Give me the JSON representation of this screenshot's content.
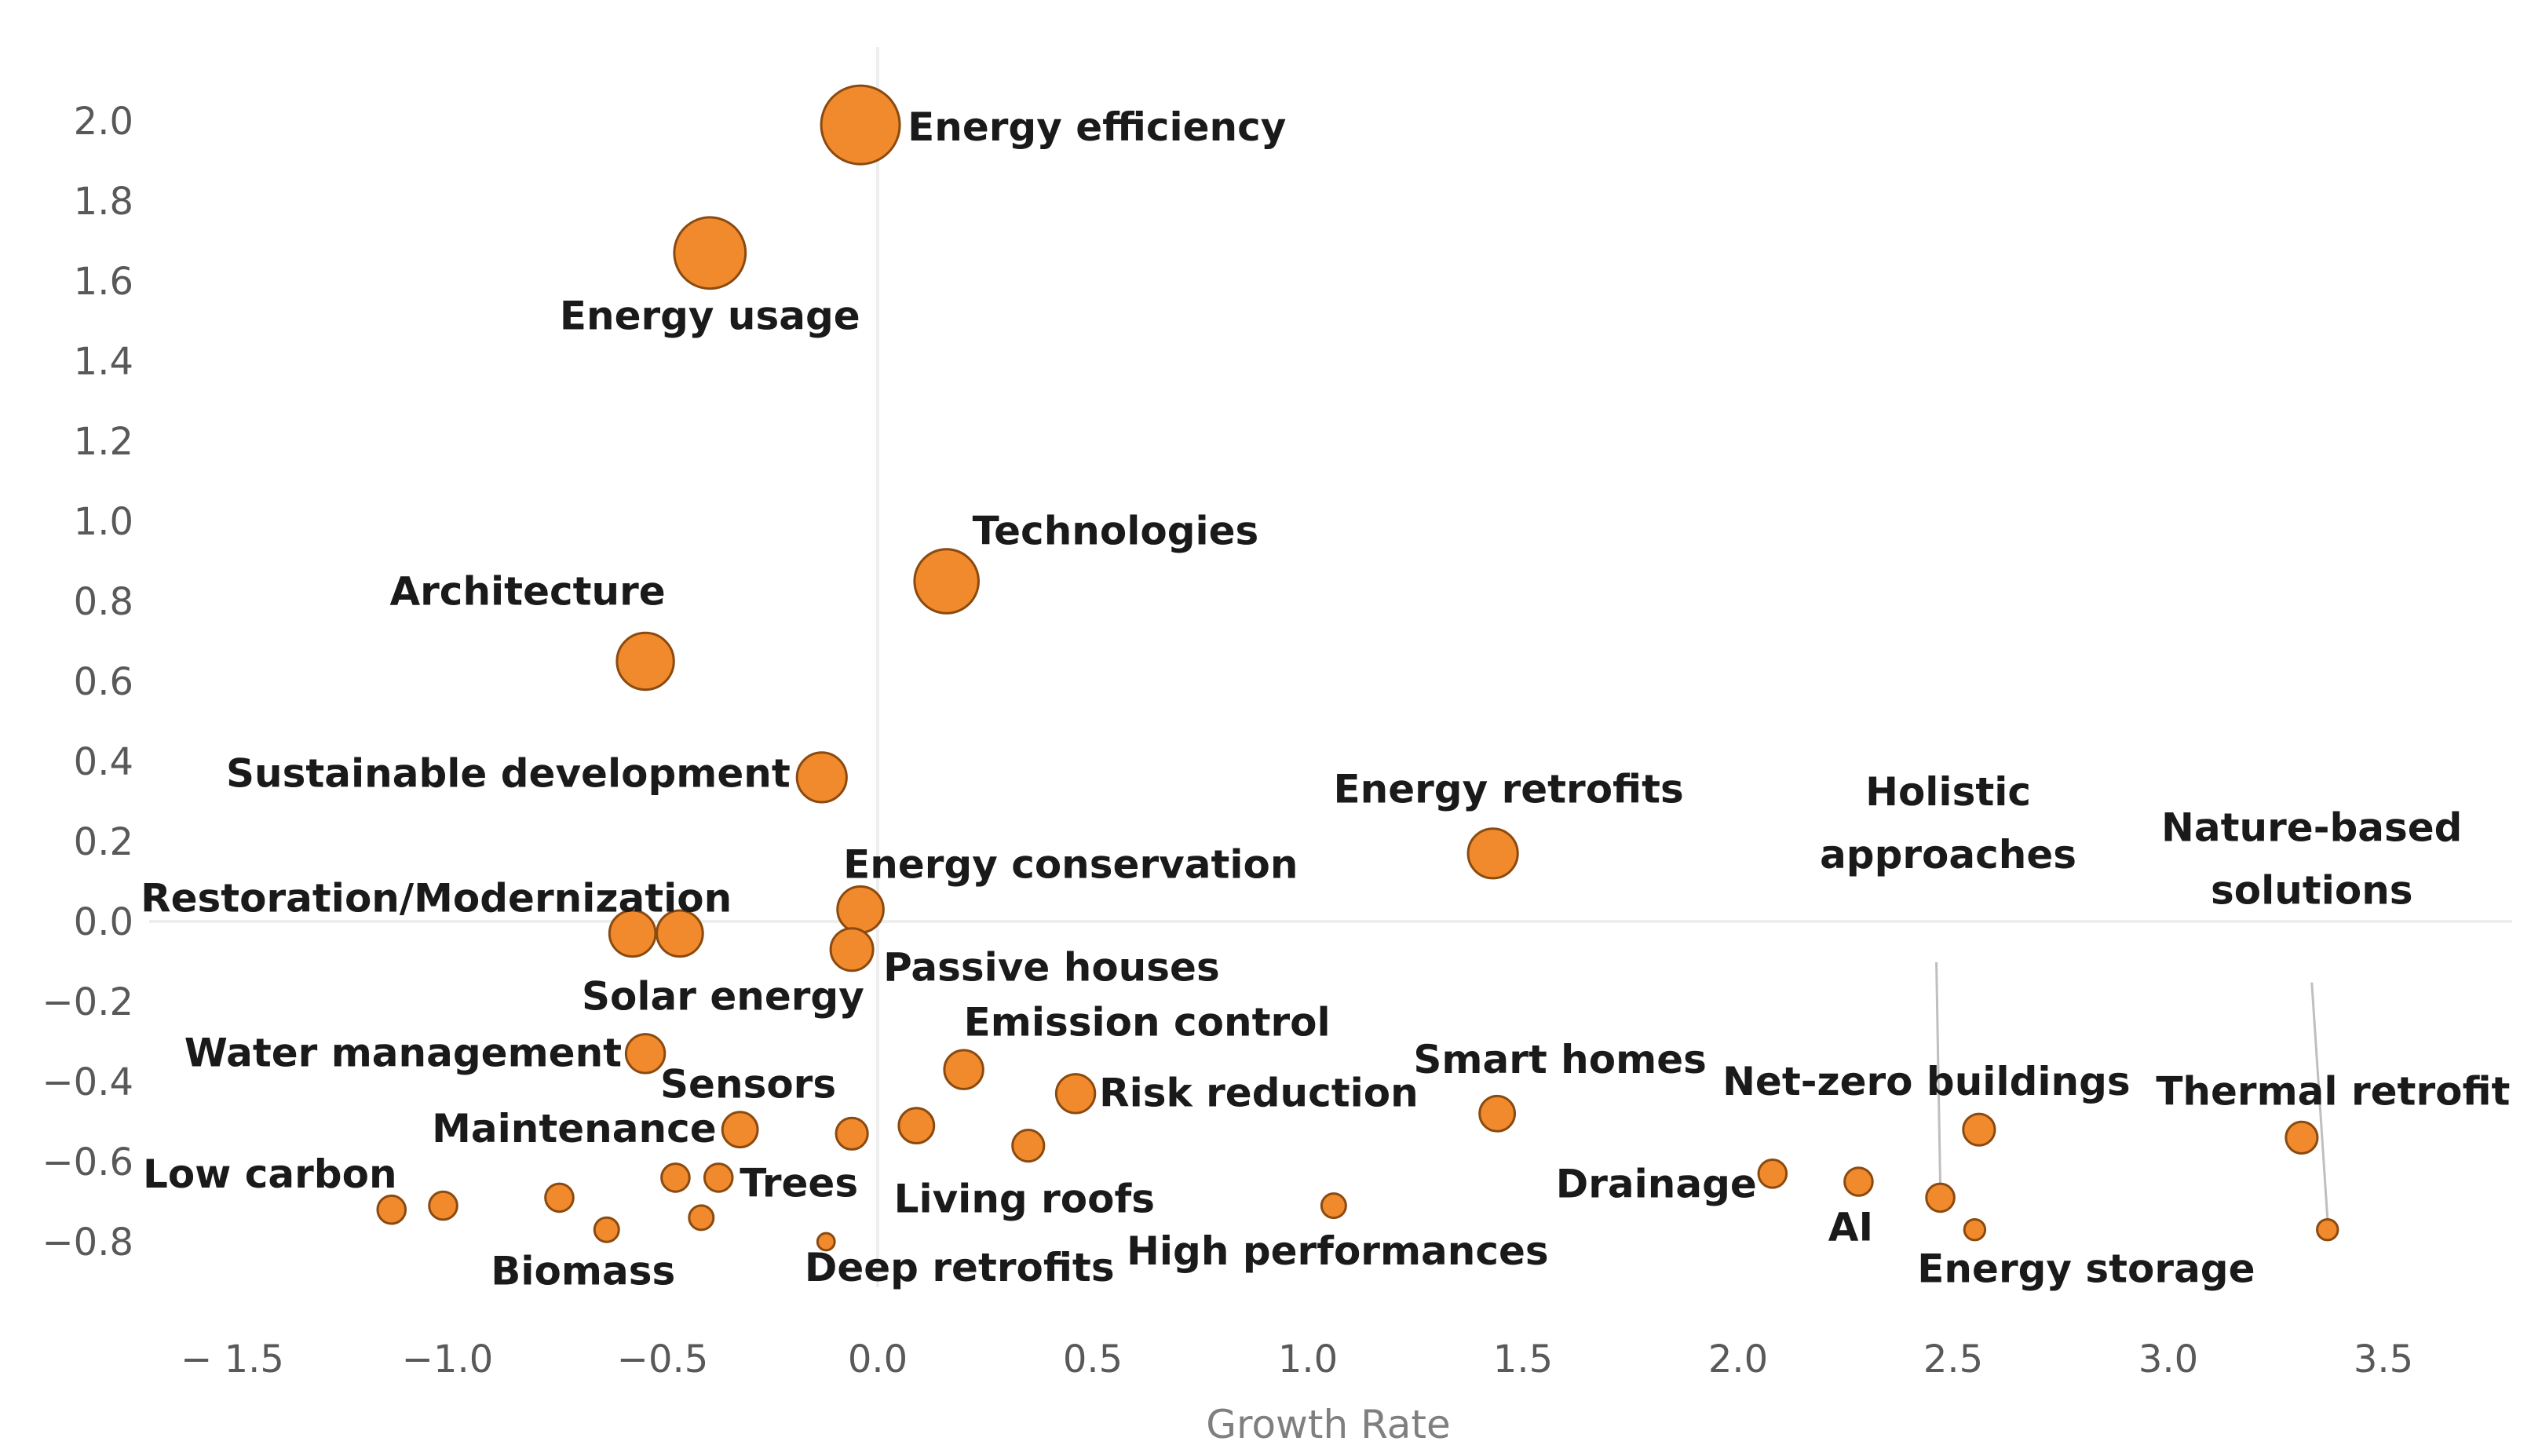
{
  "chart_data": {
    "type": "scatter",
    "title": "",
    "xlabel": "Growth Rate",
    "ylabel": "",
    "xlim": [
      -1.65,
      3.8
    ],
    "ylim": [
      -0.96,
      2.2
    ],
    "x_ticks": [
      -1.5,
      -1.0,
      -0.5,
      0.0,
      0.5,
      1.0,
      1.5,
      2.0,
      2.5,
      3.0,
      3.5
    ],
    "y_ticks": [
      -0.8,
      -0.6,
      -0.4,
      -0.2,
      0.0,
      0.2,
      0.4,
      0.6,
      0.8,
      1.0,
      1.2,
      1.4,
      1.6,
      1.8,
      2.0
    ],
    "x_tick_labels": [
      "− 1.5",
      "−1.0",
      "−0.5",
      "0.0",
      "0.5",
      "1.0",
      "1.5",
      "2.0",
      "2.5",
      "3.0",
      "3.5"
    ],
    "y_tick_labels": [
      "−0.8",
      "−0.6",
      "−0.4",
      "−0.2",
      "0.0",
      "0.2",
      "0.4",
      "0.6",
      "0.8",
      "1.0",
      "1.2",
      "1.4",
      "1.6",
      "1.8",
      "2.0"
    ],
    "grid": false,
    "color": "#f08a2c",
    "points": [
      {
        "label": "Energy efficiency",
        "x": -0.04,
        "y": 1.99,
        "size": 10
      },
      {
        "label": "Energy usage",
        "x": -0.39,
        "y": 1.67,
        "size": 9
      },
      {
        "label": "Technologies",
        "x": 0.16,
        "y": 0.85,
        "size": 8
      },
      {
        "label": "Architecture",
        "x": -0.54,
        "y": 0.65,
        "size": 7
      },
      {
        "label": "Sustainable development",
        "x": -0.13,
        "y": 0.36,
        "size": 6
      },
      {
        "label": "Energy retrofits",
        "x": 1.43,
        "y": 0.17,
        "size": 6
      },
      {
        "label": "Energy conservation",
        "x": -0.04,
        "y": 0.03,
        "size": 5.5
      },
      {
        "label": "Restoration/Modernization",
        "x": -0.57,
        "y": -0.03,
        "size": 5.5
      },
      {
        "label": "Solar energy",
        "x": -0.46,
        "y": -0.03,
        "size": 5.5
      },
      {
        "label": "Passive houses",
        "x": -0.06,
        "y": -0.07,
        "size": 5
      },
      {
        "label": "Water management",
        "x": -0.54,
        "y": -0.33,
        "size": 4.5
      },
      {
        "label": "Emission control",
        "x": 0.2,
        "y": -0.37,
        "size": 4.5
      },
      {
        "label": "Risk reduction",
        "x": 0.46,
        "y": -0.43,
        "size": 4.5
      },
      {
        "label": "Smart homes",
        "x": 1.44,
        "y": -0.48,
        "size": 4
      },
      {
        "label": "Sensors",
        "x": -0.06,
        "y": -0.53,
        "size": 3.5
      },
      {
        "label": "Maintenance",
        "x": -0.32,
        "y": -0.52,
        "size": 4
      },
      {
        "label": "",
        "x": 0.09,
        "y": -0.51,
        "size": 4
      },
      {
        "label": "Living roofs",
        "x": 0.35,
        "y": -0.56,
        "size": 3.5
      },
      {
        "label": "Net-zero buildings",
        "x": 2.56,
        "y": -0.52,
        "size": 3.5
      },
      {
        "label": "Thermal retrofit",
        "x": 3.31,
        "y": -0.54,
        "size": 3.5
      },
      {
        "label": "Drainage",
        "x": 2.08,
        "y": -0.63,
        "size": 3
      },
      {
        "label": "AI",
        "x": 2.28,
        "y": -0.65,
        "size": 3
      },
      {
        "label": "Holistic approaches",
        "x": 2.47,
        "y": -0.69,
        "size": 3
      },
      {
        "label": "Energy storage",
        "x": 2.55,
        "y": -0.77,
        "size": 2
      },
      {
        "label": "Nature-based solutions",
        "x": 3.37,
        "y": -0.77,
        "size": 2
      },
      {
        "label": "Trees",
        "x": -0.37,
        "y": -0.64,
        "size": 3
      },
      {
        "label": "",
        "x": -0.47,
        "y": -0.64,
        "size": 3
      },
      {
        "label": "",
        "x": -0.41,
        "y": -0.74,
        "size": 2.5
      },
      {
        "label": "",
        "x": -0.74,
        "y": -0.69,
        "size": 3
      },
      {
        "label": "Biomass",
        "x": -0.63,
        "y": -0.77,
        "size": 2.5
      },
      {
        "label": "",
        "x": -1.01,
        "y": -0.71,
        "size": 3
      },
      {
        "label": "Low carbon",
        "x": -1.13,
        "y": -0.72,
        "size": 3
      },
      {
        "label": "Deep retrofits",
        "x": -0.12,
        "y": -0.8,
        "size": 1.5
      },
      {
        "label": "High performances",
        "x": 1.06,
        "y": -0.71,
        "size": 2.5
      }
    ]
  }
}
